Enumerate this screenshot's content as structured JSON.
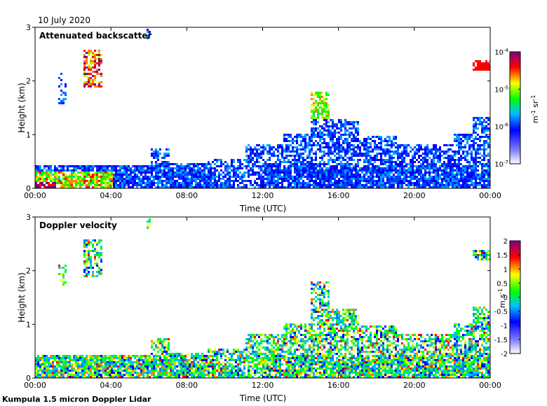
{
  "date_label": "10 July 2020",
  "footer_label": "Kumpula 1.5 micron Doppler Lidar",
  "chart_data": [
    {
      "type": "heatmap",
      "title": "Attenuated backscatter",
      "xlabel": "Time (UTC)",
      "ylabel": "Height (km)",
      "xticks": [
        "00:00",
        "04:00",
        "08:00",
        "12:00",
        "16:00",
        "20:00",
        "00:00"
      ],
      "xlim_hours": [
        0,
        24
      ],
      "yticks": [
        "0",
        "1",
        "2",
        "3"
      ],
      "ylim_km": [
        0,
        3
      ],
      "colorbar": {
        "scale": "log",
        "unit_base": "m",
        "unit_base_exp": "-1",
        "unit_sr": "sr",
        "unit_sr_exp": "-1",
        "tick_base": "10",
        "tick_exponents": [
          "-4",
          "-5",
          "-6",
          "-7"
        ],
        "colors": [
          "#ffffff",
          "#0000ff",
          "#00ff00",
          "#ffff00",
          "#ff0000",
          "#800080"
        ]
      },
      "features": [
        {
          "name": "boundary-layer",
          "t0": 0.0,
          "t1": 24.0,
          "h_top": 0.45
        },
        {
          "name": "cloud-22-3km",
          "t0": 2.5,
          "t1": 3.5,
          "h0": 1.9,
          "h1": 2.6
        },
        {
          "name": "cloud-14-16",
          "t0": 14.5,
          "t1": 15.5,
          "h0": 0.1,
          "h1": 1.9
        },
        {
          "name": "cloud-23h",
          "t0": 23.0,
          "t1": 24.0,
          "h0": 2.2,
          "h1": 2.4
        }
      ]
    },
    {
      "type": "heatmap",
      "title": "Doppler velocity",
      "xlabel": "Time (UTC)",
      "ylabel": "Height (km)",
      "xticks": [
        "00:00",
        "04:00",
        "08:00",
        "12:00",
        "16:00",
        "20:00",
        "00:00"
      ],
      "xlim_hours": [
        0,
        24
      ],
      "yticks": [
        "0",
        "1",
        "2",
        "3"
      ],
      "ylim_km": [
        0,
        3
      ],
      "colorbar": {
        "scale": "linear",
        "unit_base": "m",
        "unit_sr": "s",
        "unit_sr_exp": "-1",
        "range": [
          -2,
          2
        ],
        "ticks": [
          "2",
          "1.5",
          "1",
          "0.5",
          "0",
          "-0.5",
          "-1",
          "-1.5",
          "-2"
        ],
        "colors": [
          "#ffffff",
          "#0000ff",
          "#00ff00",
          "#ffff00",
          "#ff0000",
          "#800080"
        ]
      }
    }
  ]
}
